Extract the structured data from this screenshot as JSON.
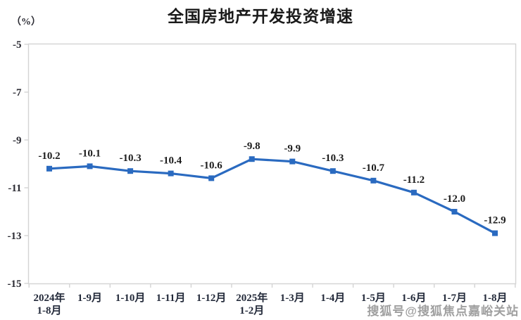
{
  "watermark": {
    "text": "搜狐号@搜狐焦点嘉峪关站"
  },
  "chart_data": {
    "type": "line",
    "title": "全国房地产开发投资增速",
    "ylabel": "（%）",
    "xlabel": "",
    "categories": [
      "2024年\n1-8月",
      "1-9月",
      "1-10月",
      "1-11月",
      "1-12月",
      "2025年\n1-2月",
      "1-3月",
      "1-4月",
      "1-5月",
      "1-6月",
      "1-7月",
      "1-8月"
    ],
    "values": [
      -10.2,
      -10.1,
      -10.3,
      -10.4,
      -10.6,
      -9.8,
      -9.9,
      -10.3,
      -10.7,
      -11.2,
      -12.0,
      -12.9
    ],
    "data_labels": [
      "-10.2",
      "-10.1",
      "-10.3",
      "-10.4",
      "-10.6",
      "-9.8",
      "-9.9",
      "-10.3",
      "-10.7",
      "-11.2",
      "-12.0",
      "-12.9"
    ],
    "ylim": [
      -15,
      -5
    ],
    "y_ticks": [
      -5,
      -7,
      -9,
      -11,
      -13,
      -15
    ],
    "grid": false,
    "legend": "none",
    "marker": "square",
    "line_color": "#2a6ac0",
    "axis_color": "#d4d4d4"
  }
}
